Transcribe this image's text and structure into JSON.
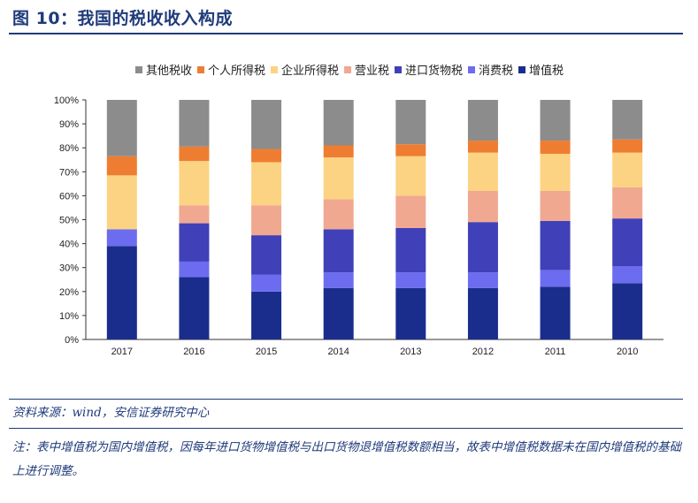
{
  "figure": {
    "title": "图 10：我国的税收收入构成",
    "source": "资料来源：wind，安信证券研究中心",
    "note": "注：表中增值税为国内增值税，因每年进口货物增值税与出口货物退增值税数额相当，故表中增值税数据未在国内增值税的基础上进行调整。"
  },
  "chart_data": {
    "type": "bar",
    "stacked": true,
    "categories": [
      "2017",
      "2016",
      "2015",
      "2014",
      "2013",
      "2012",
      "2011",
      "2010"
    ],
    "ylim": [
      0,
      100
    ],
    "yticks": [
      "0%",
      "10%",
      "20%",
      "30%",
      "40%",
      "50%",
      "60%",
      "70%",
      "80%",
      "90%",
      "100%"
    ],
    "legend_position": "top",
    "series": [
      {
        "name": "增值税",
        "color": "#1a2d8c",
        "values": [
          39,
          26,
          20,
          21.5,
          21.5,
          21.5,
          22,
          23.5
        ]
      },
      {
        "name": "消费税",
        "color": "#6c6cf0",
        "values": [
          7,
          6.5,
          7,
          6.5,
          6.5,
          6.5,
          7,
          7
        ]
      },
      {
        "name": "进口货物税",
        "color": "#4040b8",
        "values": [
          0,
          16,
          16.5,
          18,
          18.5,
          21,
          20.5,
          20
        ]
      },
      {
        "name": "营业税",
        "color": "#f0a890",
        "values": [
          0,
          7.5,
          12.5,
          12.5,
          13.5,
          13,
          12.5,
          13
        ]
      },
      {
        "name": "企业所得税",
        "color": "#fcd383",
        "values": [
          22.5,
          18.5,
          18,
          17.5,
          16.5,
          16,
          15.5,
          14.5
        ]
      },
      {
        "name": "个人所得税",
        "color": "#ee7d31",
        "values": [
          8,
          6,
          5.5,
          5,
          5,
          5,
          5.5,
          5.5
        ]
      },
      {
        "name": "其他税收",
        "color": "#8c8c8c",
        "values": [
          23.5,
          19.5,
          20.5,
          19,
          18.5,
          17,
          17,
          16.5
        ]
      }
    ]
  }
}
